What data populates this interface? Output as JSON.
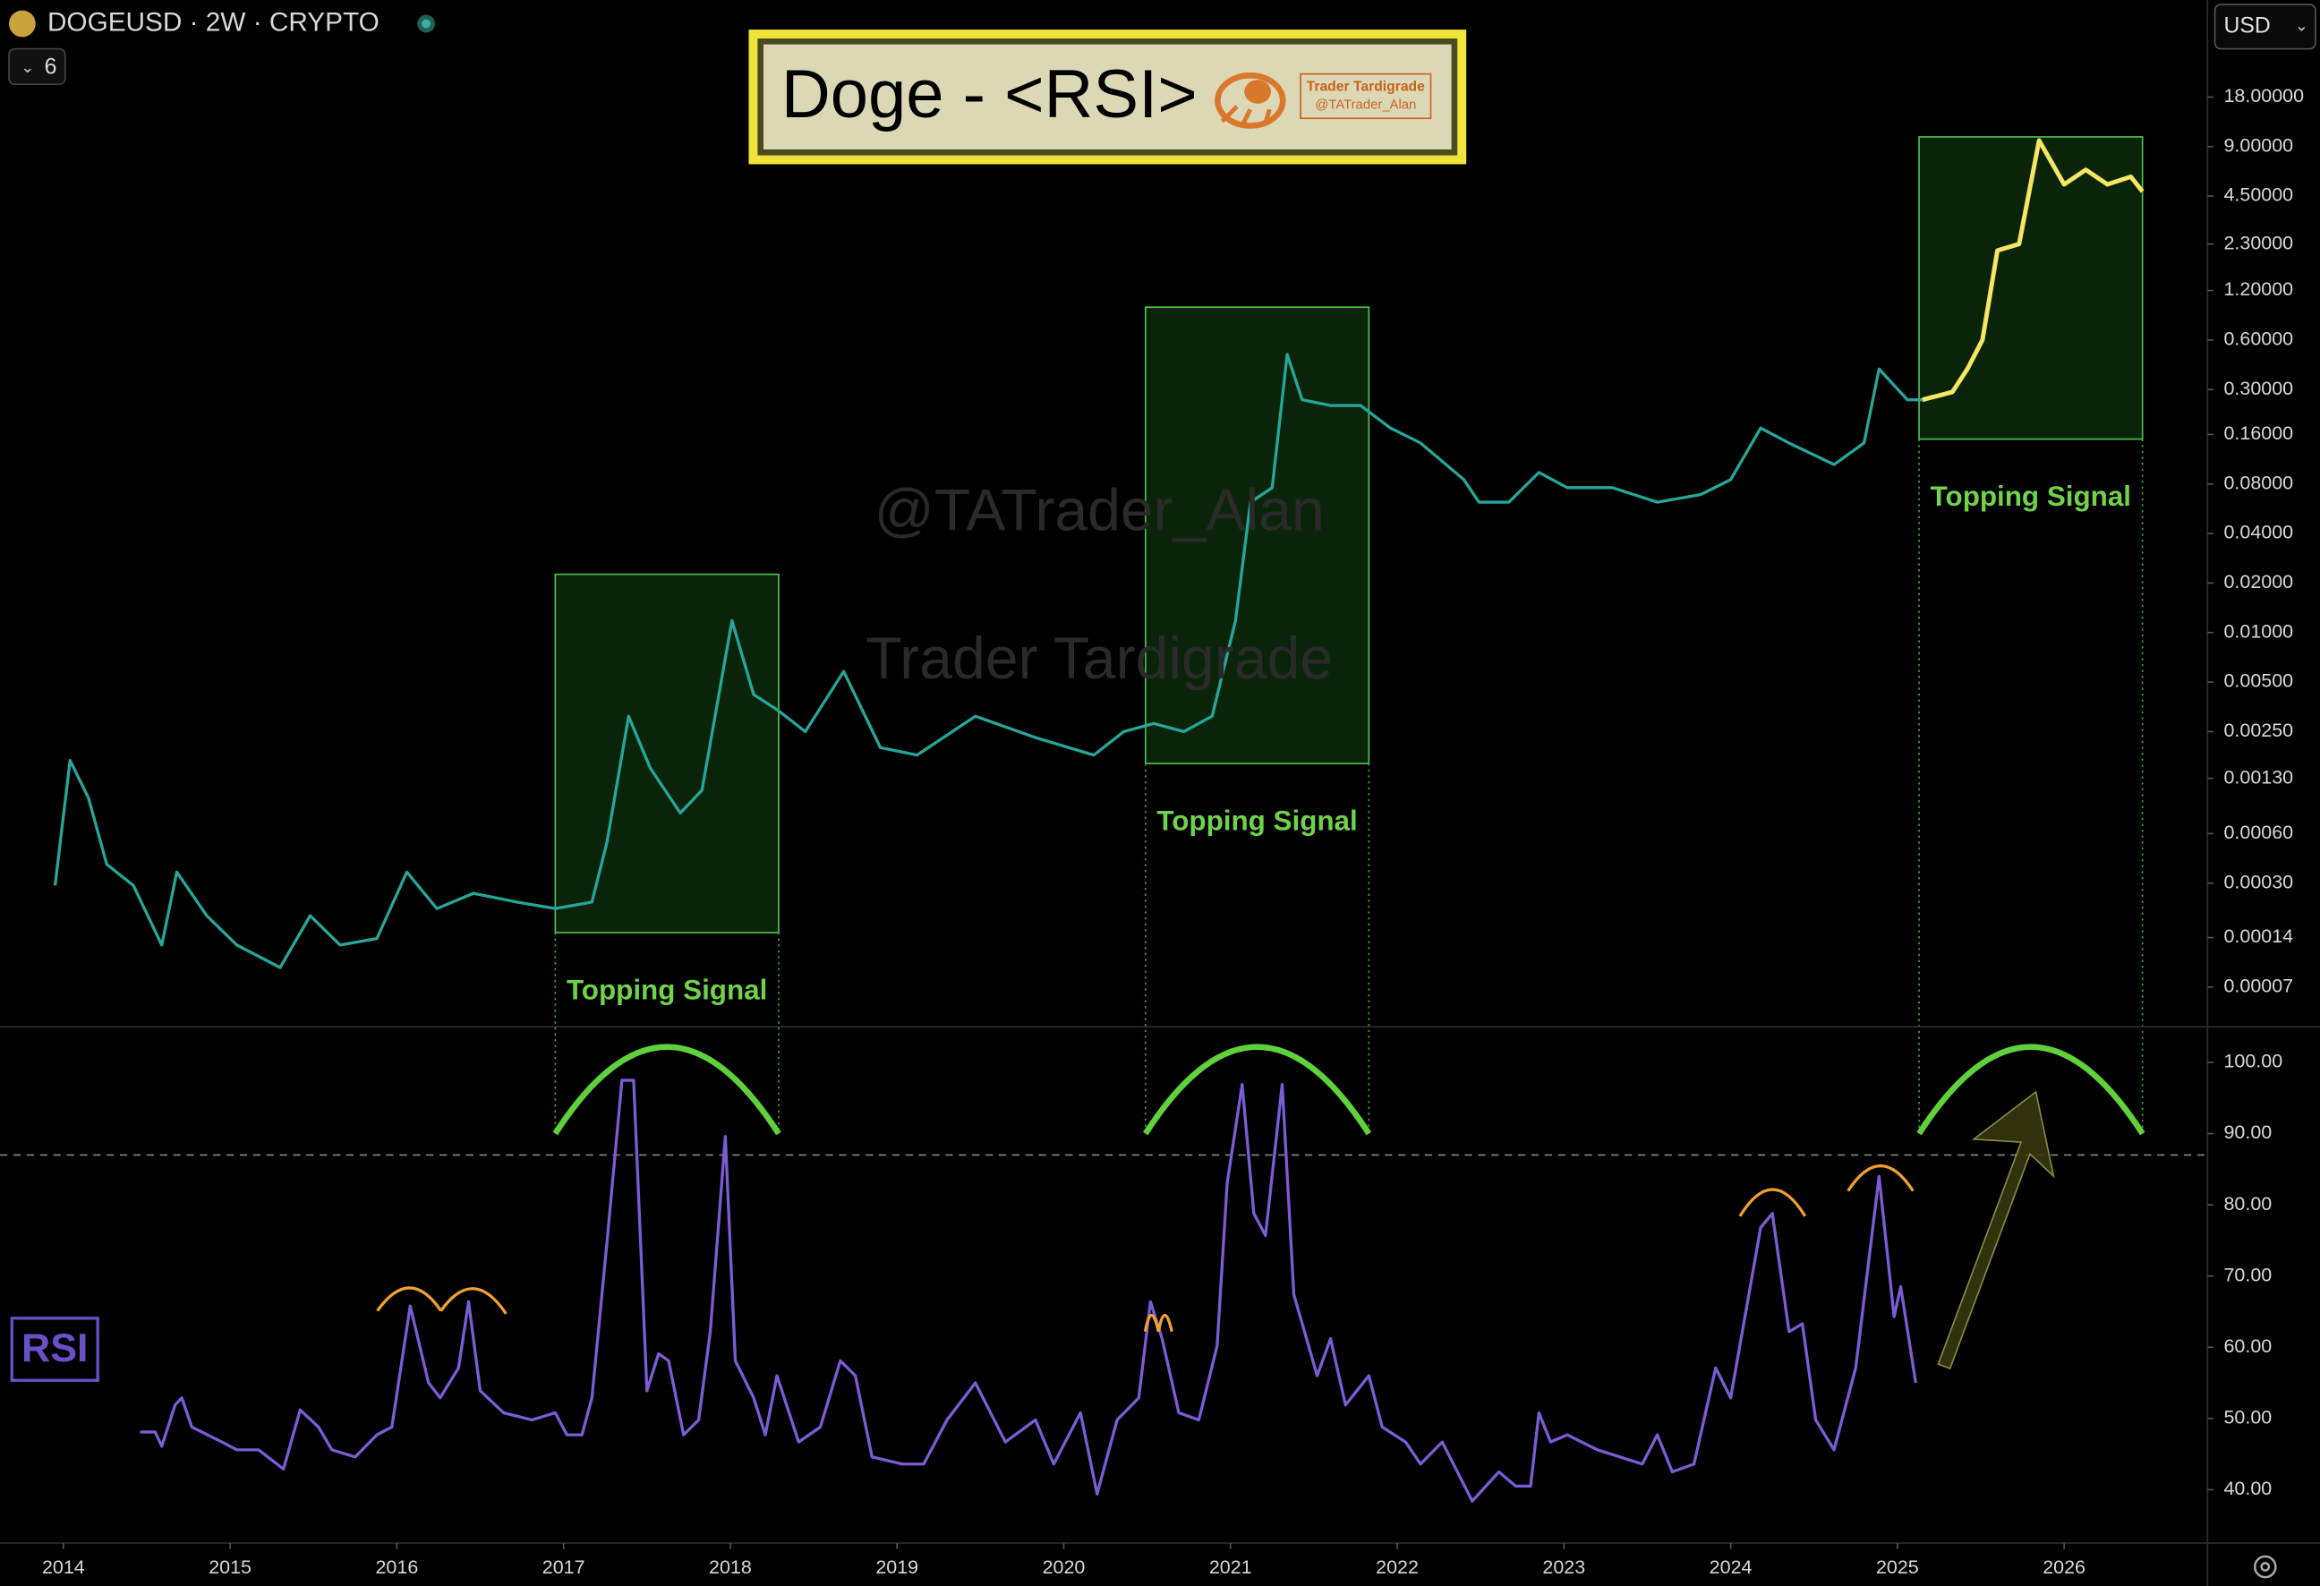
{
  "header": {
    "symbol": "DOGEUSD · 2W · CRYPTO",
    "indicator_count": "6",
    "currency": "USD",
    "title": "Doge - <RSI>",
    "logo_name": "Trader Tardigrade",
    "logo_handle": "@TATrader_Alan",
    "watermark_handle": "@TATrader_Alan",
    "watermark_name": "Trader Tardigrade"
  },
  "chart_data": [
    {
      "type": "line",
      "log_scale": true,
      "xlim": [
        2013.62,
        2026.86
      ],
      "ylim": [
        4.1e-05,
        70
      ],
      "yticks": [
        {
          "value": 18,
          "label": "18.00000"
        },
        {
          "value": 9,
          "label": "9.00000"
        },
        {
          "value": 4.5,
          "label": "4.50000"
        },
        {
          "value": 2.3,
          "label": "2.30000"
        },
        {
          "value": 1.2,
          "label": "1.20000"
        },
        {
          "value": 0.6,
          "label": "0.60000"
        },
        {
          "value": 0.3,
          "label": "0.30000"
        },
        {
          "value": 0.16,
          "label": "0.16000"
        },
        {
          "value": 0.08,
          "label": "0.08000"
        },
        {
          "value": 0.04,
          "label": "0.04000"
        },
        {
          "value": 0.02,
          "label": "0.02000"
        },
        {
          "value": 0.01,
          "label": "0.01000"
        },
        {
          "value": 0.005,
          "label": "0.00500"
        },
        {
          "value": 0.0025,
          "label": "0.00250"
        },
        {
          "value": 0.0013,
          "label": "0.00130"
        },
        {
          "value": 0.0006,
          "label": "0.00060"
        },
        {
          "value": 0.0003,
          "label": "0.00030"
        },
        {
          "value": 0.00014,
          "label": "0.00014"
        },
        {
          "value": 7e-05,
          "label": "0.00007"
        }
      ],
      "price": {
        "color": "#26a69a",
        "x": [
          2013.95,
          2014.04,
          2014.15,
          2014.26,
          2014.42,
          2014.59,
          2014.68,
          2014.86,
          2015.04,
          2015.3,
          2015.48,
          2015.66,
          2015.88,
          2016.06,
          2016.24,
          2016.46,
          2016.72,
          2016.95,
          2017.17,
          2017.26,
          2017.39,
          2017.52,
          2017.7,
          2017.83,
          2018.01,
          2018.14,
          2018.28,
          2018.45,
          2018.68,
          2018.9,
          2019.12,
          2019.47,
          2019.83,
          2020.18,
          2020.36,
          2020.54,
          2020.72,
          2020.89,
          2021.03,
          2021.12,
          2021.25,
          2021.34,
          2021.43,
          2021.6,
          2021.78,
          2021.96,
          2022.14,
          2022.4,
          2022.49,
          2022.67,
          2022.85,
          2023.02,
          2023.29,
          2023.56,
          2023.82,
          2024.0,
          2024.18,
          2024.35,
          2024.62,
          2024.8,
          2024.89,
          2025.06,
          2025.15
        ],
        "values": [
          0.00029,
          0.00167,
          0.00099,
          0.00039,
          0.00029,
          0.000126,
          0.00035,
          0.00019,
          0.000126,
          9.2e-05,
          0.00019,
          0.000126,
          0.000138,
          0.00035,
          0.00021,
          0.00026,
          0.00023,
          0.00021,
          0.00023,
          0.00053,
          0.0031,
          0.0015,
          0.0008,
          0.0011,
          0.0118,
          0.0042,
          0.0034,
          0.0025,
          0.0058,
          0.002,
          0.0018,
          0.0031,
          0.0023,
          0.0018,
          0.0025,
          0.0028,
          0.0025,
          0.0031,
          0.0118,
          0.062,
          0.076,
          0.49,
          0.26,
          0.24,
          0.24,
          0.175,
          0.142,
          0.085,
          0.062,
          0.062,
          0.094,
          0.076,
          0.076,
          0.062,
          0.069,
          0.085,
          0.175,
          0.142,
          0.105,
          0.142,
          0.4,
          0.26,
          0.26
        ]
      },
      "projection": {
        "color": "#f5e663",
        "x": [
          2025.15,
          2025.33,
          2025.42,
          2025.51,
          2025.6,
          2025.73,
          2025.85,
          2026.0,
          2026.13,
          2026.26,
          2026.4,
          2026.47
        ],
        "values": [
          0.26,
          0.29,
          0.4,
          0.6,
          2.1,
          2.3,
          9.8,
          5.3,
          6.5,
          5.3,
          5.9,
          4.8
        ]
      },
      "highlight_boxes": [
        {
          "x": [
            2016.95,
            2018.29
          ],
          "y": [
            0.00015,
            0.0226
          ],
          "label": "Topping Signal"
        },
        {
          "x": [
            2020.49,
            2021.83
          ],
          "y": [
            0.0016,
            0.95
          ],
          "label": "Topping Signal"
        },
        {
          "x": [
            2025.13,
            2026.47
          ],
          "y": [
            0.15,
            10.3
          ],
          "label": "Topping Signal"
        }
      ]
    },
    {
      "type": "line",
      "name": "RSI",
      "color": "#7b5cd6",
      "xlim": [
        2013.62,
        2026.86
      ],
      "xticks": [
        2014,
        2015,
        2016,
        2017,
        2018,
        2019,
        2020,
        2021,
        2022,
        2023,
        2024,
        2025,
        2026
      ],
      "ylim": [
        32.5,
        104.8
      ],
      "yticks": [
        {
          "value": 100,
          "label": "100.00"
        },
        {
          "value": 90,
          "label": "90.00"
        },
        {
          "value": 80,
          "label": "80.00"
        },
        {
          "value": 70,
          "label": "70.00"
        },
        {
          "value": 60,
          "label": "60.00"
        },
        {
          "value": 50,
          "label": "50.00"
        },
        {
          "value": 40,
          "label": "40.00"
        }
      ],
      "threshold": 87,
      "x": [
        2014.46,
        2014.55,
        2014.59,
        2014.67,
        2014.71,
        2014.77,
        2014.95,
        2015.04,
        2015.17,
        2015.32,
        2015.42,
        2015.53,
        2015.61,
        2015.75,
        2015.88,
        2015.97,
        2016.08,
        2016.19,
        2016.26,
        2016.37,
        2016.43,
        2016.5,
        2016.64,
        2016.81,
        2016.95,
        2017.02,
        2017.11,
        2017.17,
        2017.26,
        2017.35,
        2017.42,
        2017.5,
        2017.57,
        2017.63,
        2017.72,
        2017.81,
        2017.88,
        2017.97,
        2018.03,
        2018.14,
        2018.21,
        2018.28,
        2018.41,
        2018.54,
        2018.66,
        2018.75,
        2018.85,
        2019.03,
        2019.16,
        2019.3,
        2019.47,
        2019.65,
        2019.83,
        2019.94,
        2020.1,
        2020.2,
        2020.32,
        2020.45,
        2020.52,
        2020.59,
        2020.69,
        2020.81,
        2020.92,
        2020.98,
        2021.07,
        2021.14,
        2021.21,
        2021.31,
        2021.38,
        2021.52,
        2021.6,
        2021.69,
        2021.83,
        2021.91,
        2022.05,
        2022.14,
        2022.27,
        2022.45,
        2022.61,
        2022.71,
        2022.8,
        2022.85,
        2022.92,
        2023.02,
        2023.2,
        2023.47,
        2023.56,
        2023.65,
        2023.78,
        2023.91,
        2024.0,
        2024.18,
        2024.25,
        2024.35,
        2024.43,
        2024.51,
        2024.62,
        2024.75,
        2024.89,
        2024.98,
        2025.02,
        2025.11
      ],
      "values": [
        48.1,
        48.1,
        46.1,
        51.9,
        52.9,
        48.8,
        46.7,
        45.6,
        45.6,
        42.9,
        51.2,
        48.8,
        45.6,
        44.6,
        47.7,
        48.8,
        65.8,
        55.0,
        52.9,
        57.1,
        66.4,
        53.9,
        50.8,
        49.8,
        50.8,
        47.7,
        47.7,
        52.9,
        74.7,
        97.5,
        97.5,
        53.9,
        59.1,
        58.1,
        47.7,
        49.8,
        62.2,
        89.6,
        58.1,
        52.9,
        47.7,
        56.0,
        46.7,
        48.8,
        58.1,
        56.0,
        44.6,
        43.6,
        43.6,
        49.8,
        55.0,
        46.7,
        49.8,
        43.6,
        50.8,
        39.4,
        49.8,
        52.9,
        66.4,
        61.2,
        50.8,
        49.8,
        60.2,
        83.0,
        96.9,
        78.8,
        75.7,
        96.9,
        67.4,
        56.0,
        61.2,
        51.9,
        56.0,
        48.8,
        46.7,
        43.6,
        46.7,
        38.4,
        42.5,
        40.5,
        40.5,
        50.8,
        46.7,
        47.7,
        45.6,
        43.6,
        47.7,
        42.5,
        43.6,
        57.1,
        52.9,
        76.8,
        78.8,
        62.2,
        63.3,
        49.8,
        45.6,
        57.1,
        84.0,
        64.3,
        68.5,
        55.0
      ]
    }
  ]
}
